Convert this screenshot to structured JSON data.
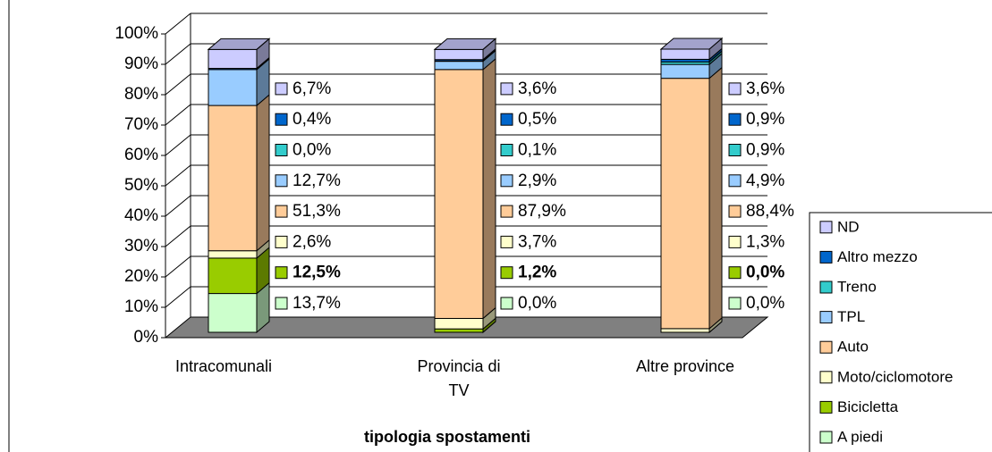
{
  "chart_data": {
    "type": "bar3d_stacked",
    "x_label": "tipologia spostamenti",
    "categories": [
      "Intracomunali",
      "Provincia di TV",
      "Altre province"
    ],
    "ylim": [
      0,
      100
    ],
    "yticks": [
      {
        "value": 0,
        "label": "0%"
      },
      {
        "value": 10,
        "label": "10%"
      },
      {
        "value": 20,
        "label": "20%"
      },
      {
        "value": 30,
        "label": "30%"
      },
      {
        "value": 40,
        "label": "40%"
      },
      {
        "value": 50,
        "label": "50%"
      },
      {
        "value": 60,
        "label": "60%"
      },
      {
        "value": 70,
        "label": "70%"
      },
      {
        "value": 80,
        "label": "80%"
      },
      {
        "value": 90,
        "label": "90%"
      },
      {
        "value": 100,
        "label": "100%"
      }
    ],
    "grid": true,
    "legend": "right",
    "series": [
      {
        "name": "A piedi",
        "color": "#ccffcc",
        "values": [
          13.7,
          0.0,
          0.0
        ],
        "value_labels": [
          "13,7%",
          "0,0%",
          "0,0%"
        ]
      },
      {
        "name": "Bicicletta",
        "color": "#99cc00",
        "bold": true,
        "values": [
          12.5,
          1.2,
          0.0
        ],
        "value_labels": [
          "12,5%",
          "1,2%",
          "0,0%"
        ]
      },
      {
        "name": "Moto/ciclomotore",
        "color": "#ffffcc",
        "values": [
          2.6,
          3.7,
          1.3
        ],
        "value_labels": [
          "2,6%",
          "3,7%",
          "1,3%"
        ]
      },
      {
        "name": "Auto",
        "color": "#ffcc99",
        "values": [
          51.3,
          87.9,
          88.4
        ],
        "value_labels": [
          "51,3%",
          "87,9%",
          "88,4%"
        ]
      },
      {
        "name": "TPL",
        "color": "#99ccff",
        "values": [
          12.7,
          2.9,
          4.9
        ],
        "value_labels": [
          "12,7%",
          "2,9%",
          "4,9%"
        ]
      },
      {
        "name": "Treno",
        "color": "#33cccc",
        "values": [
          0.0,
          0.1,
          0.9
        ],
        "value_labels": [
          "0,0%",
          "0,1%",
          "0,9%"
        ]
      },
      {
        "name": "Altro mezzo",
        "color": "#0066cc",
        "values": [
          0.4,
          0.5,
          0.9
        ],
        "value_labels": [
          "0,4%",
          "0,5%",
          "0,9%"
        ]
      },
      {
        "name": "ND",
        "color": "#ccccff",
        "values": [
          6.7,
          3.6,
          3.6
        ],
        "value_labels": [
          "6,7%",
          "3,6%",
          "3,6%"
        ]
      }
    ]
  }
}
